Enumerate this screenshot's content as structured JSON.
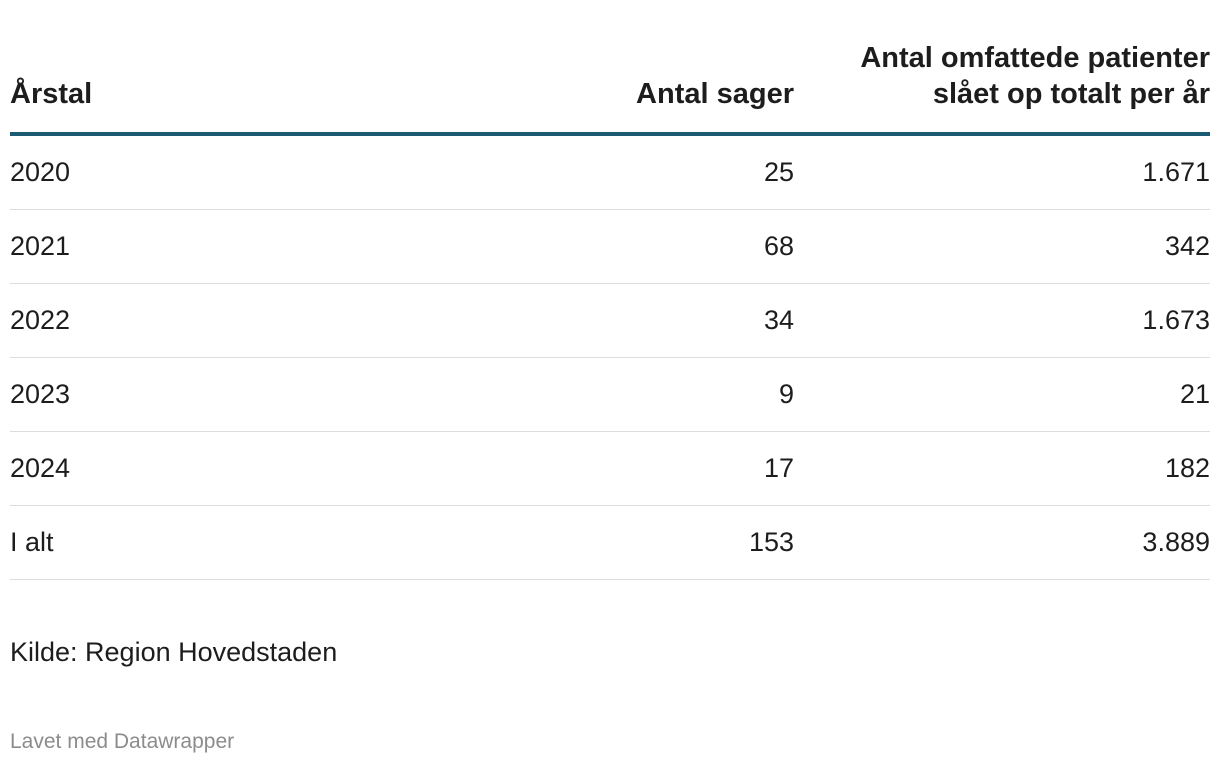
{
  "chart_data": {
    "type": "table",
    "columns": [
      "Årstal",
      "Antal sager",
      "Antal omfattede patienter slået op totalt per år"
    ],
    "rows": [
      {
        "year": "2020",
        "cases": "25",
        "patients": "1.671"
      },
      {
        "year": "2021",
        "cases": "68",
        "patients": "342"
      },
      {
        "year": "2022",
        "cases": "34",
        "patients": "1.673"
      },
      {
        "year": "2023",
        "cases": "9",
        "patients": "21"
      },
      {
        "year": "2024",
        "cases": "17",
        "patients": "182"
      },
      {
        "year": "I alt",
        "cases": "153",
        "patients": "3.889"
      }
    ],
    "header_rule_color": "#1a5a73"
  },
  "footer": {
    "source": "Kilde: Region Hovedstaden",
    "credit": "Lavet med Datawrapper"
  }
}
